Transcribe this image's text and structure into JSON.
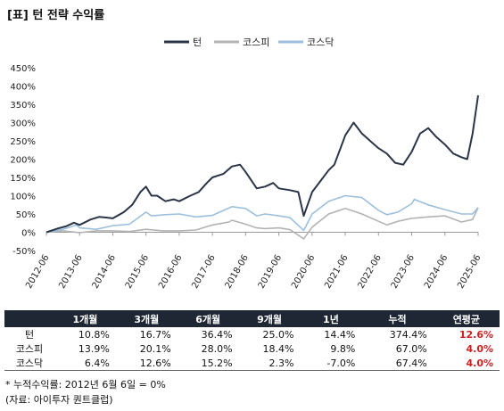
{
  "title": "[표] 턴 전략 수익률",
  "chart_data": {
    "type": "line",
    "ylim": [
      -50,
      450
    ],
    "y_ticks": [
      "-50%",
      "0%",
      "50%",
      "100%",
      "150%",
      "200%",
      "250%",
      "300%",
      "350%",
      "400%",
      "450%"
    ],
    "x_ticks": [
      "2012-06",
      "2013-06",
      "2014-06",
      "2015-06",
      "2016-06",
      "2017-06",
      "2018-06",
      "2019-06",
      "2020-06",
      "2021-06",
      "2022-06",
      "2023-06",
      "2024-06",
      "2025-06"
    ],
    "legend_position": "top-center",
    "grid": false,
    "series": [
      {
        "name": "턴",
        "color": "#2b3547",
        "points": [
          [
            "2012-06",
            0
          ],
          [
            "2012-10",
            10
          ],
          [
            "2013-01",
            16
          ],
          [
            "2013-04",
            26
          ],
          [
            "2013-06",
            20
          ],
          [
            "2013-10",
            35
          ],
          [
            "2014-01",
            42
          ],
          [
            "2014-04",
            40
          ],
          [
            "2014-06",
            38
          ],
          [
            "2014-10",
            55
          ],
          [
            "2015-01",
            75
          ],
          [
            "2015-04",
            110
          ],
          [
            "2015-06",
            125
          ],
          [
            "2015-08",
            100
          ],
          [
            "2015-10",
            100
          ],
          [
            "2016-01",
            85
          ],
          [
            "2016-04",
            90
          ],
          [
            "2016-06",
            85
          ],
          [
            "2016-10",
            100
          ],
          [
            "2017-01",
            110
          ],
          [
            "2017-04",
            135
          ],
          [
            "2017-06",
            150
          ],
          [
            "2017-10",
            160
          ],
          [
            "2018-01",
            180
          ],
          [
            "2018-04",
            185
          ],
          [
            "2018-06",
            165
          ],
          [
            "2018-10",
            120
          ],
          [
            "2019-01",
            125
          ],
          [
            "2019-04",
            135
          ],
          [
            "2019-06",
            120
          ],
          [
            "2019-10",
            115
          ],
          [
            "2020-01",
            110
          ],
          [
            "2020-03",
            45
          ],
          [
            "2020-06",
            110
          ],
          [
            "2020-09",
            140
          ],
          [
            "2020-12",
            170
          ],
          [
            "2021-02",
            185
          ],
          [
            "2021-06",
            265
          ],
          [
            "2021-09",
            300
          ],
          [
            "2021-12",
            270
          ],
          [
            "2022-03",
            250
          ],
          [
            "2022-06",
            230
          ],
          [
            "2022-09",
            215
          ],
          [
            "2022-12",
            190
          ],
          [
            "2023-03",
            185
          ],
          [
            "2023-06",
            220
          ],
          [
            "2023-09",
            270
          ],
          [
            "2023-12",
            285
          ],
          [
            "2024-03",
            260
          ],
          [
            "2024-06",
            240
          ],
          [
            "2024-09",
            215
          ],
          [
            "2024-12",
            205
          ],
          [
            "2025-02",
            200
          ],
          [
            "2025-04",
            270
          ],
          [
            "2025-06",
            374.4
          ]
        ]
      },
      {
        "name": "코스피",
        "color": "#b3b3b3",
        "points": [
          [
            "2012-06",
            0
          ],
          [
            "2012-12",
            4
          ],
          [
            "2013-06",
            -1
          ],
          [
            "2013-12",
            4
          ],
          [
            "2014-06",
            4
          ],
          [
            "2014-12",
            2
          ],
          [
            "2015-06",
            8
          ],
          [
            "2015-12",
            4
          ],
          [
            "2016-06",
            4
          ],
          [
            "2016-12",
            6
          ],
          [
            "2017-06",
            20
          ],
          [
            "2017-12",
            28
          ],
          [
            "2018-01",
            33
          ],
          [
            "2018-06",
            22
          ],
          [
            "2018-10",
            12
          ],
          [
            "2019-01",
            10
          ],
          [
            "2019-06",
            12
          ],
          [
            "2019-10",
            7
          ],
          [
            "2020-03",
            -18
          ],
          [
            "2020-06",
            14
          ],
          [
            "2020-12",
            50
          ],
          [
            "2021-06",
            65
          ],
          [
            "2021-12",
            50
          ],
          [
            "2022-06",
            30
          ],
          [
            "2022-09",
            20
          ],
          [
            "2023-01",
            30
          ],
          [
            "2023-06",
            38
          ],
          [
            "2023-12",
            42
          ],
          [
            "2024-06",
            45
          ],
          [
            "2024-12",
            28
          ],
          [
            "2025-04",
            35
          ],
          [
            "2025-06",
            67.0
          ]
        ]
      },
      {
        "name": "코스닥",
        "color": "#9cbfdd",
        "points": [
          [
            "2012-06",
            0
          ],
          [
            "2012-12",
            8
          ],
          [
            "2013-05",
            20
          ],
          [
            "2013-06",
            12
          ],
          [
            "2013-12",
            8
          ],
          [
            "2014-06",
            18
          ],
          [
            "2014-12",
            22
          ],
          [
            "2015-06",
            55
          ],
          [
            "2015-08",
            45
          ],
          [
            "2016-01",
            48
          ],
          [
            "2016-06",
            50
          ],
          [
            "2016-12",
            42
          ],
          [
            "2017-06",
            46
          ],
          [
            "2018-01",
            70
          ],
          [
            "2018-06",
            65
          ],
          [
            "2018-10",
            45
          ],
          [
            "2019-01",
            50
          ],
          [
            "2019-06",
            45
          ],
          [
            "2019-10",
            40
          ],
          [
            "2020-03",
            5
          ],
          [
            "2020-06",
            50
          ],
          [
            "2020-12",
            85
          ],
          [
            "2021-06",
            100
          ],
          [
            "2021-12",
            95
          ],
          [
            "2022-06",
            60
          ],
          [
            "2022-09",
            48
          ],
          [
            "2023-01",
            55
          ],
          [
            "2023-06",
            78
          ],
          [
            "2023-07",
            90
          ],
          [
            "2023-12",
            75
          ],
          [
            "2024-06",
            62
          ],
          [
            "2024-12",
            50
          ],
          [
            "2025-04",
            50
          ],
          [
            "2025-06",
            67.4
          ]
        ]
      }
    ]
  },
  "table": {
    "headers": [
      "",
      "1개월",
      "3개월",
      "6개월",
      "9개월",
      "1년",
      "누적",
      "연평균"
    ],
    "rows": [
      {
        "name": "턴",
        "m1": "10.8%",
        "m3": "16.7%",
        "m6": "36.4%",
        "m9": "25.0%",
        "y1": "14.4%",
        "cum": "374.4%",
        "ann": "12.6%"
      },
      {
        "name": "코스피",
        "m1": "13.9%",
        "m3": "20.1%",
        "m6": "28.0%",
        "m9": "18.4%",
        "y1": "9.8%",
        "cum": "67.0%",
        "ann": "4.0%"
      },
      {
        "name": "코스닥",
        "m1": "6.4%",
        "m3": "12.6%",
        "m6": "15.2%",
        "m9": "2.3%",
        "y1": "-7.0%",
        "cum": "67.4%",
        "ann": "4.0%"
      }
    ],
    "highlight_color": "#d11f1f"
  },
  "notes": {
    "footnote": "* 누적수익률: 2012년 6월 6일 = 0%",
    "source": "(자료: 아이투자 퀀트클럽)"
  }
}
